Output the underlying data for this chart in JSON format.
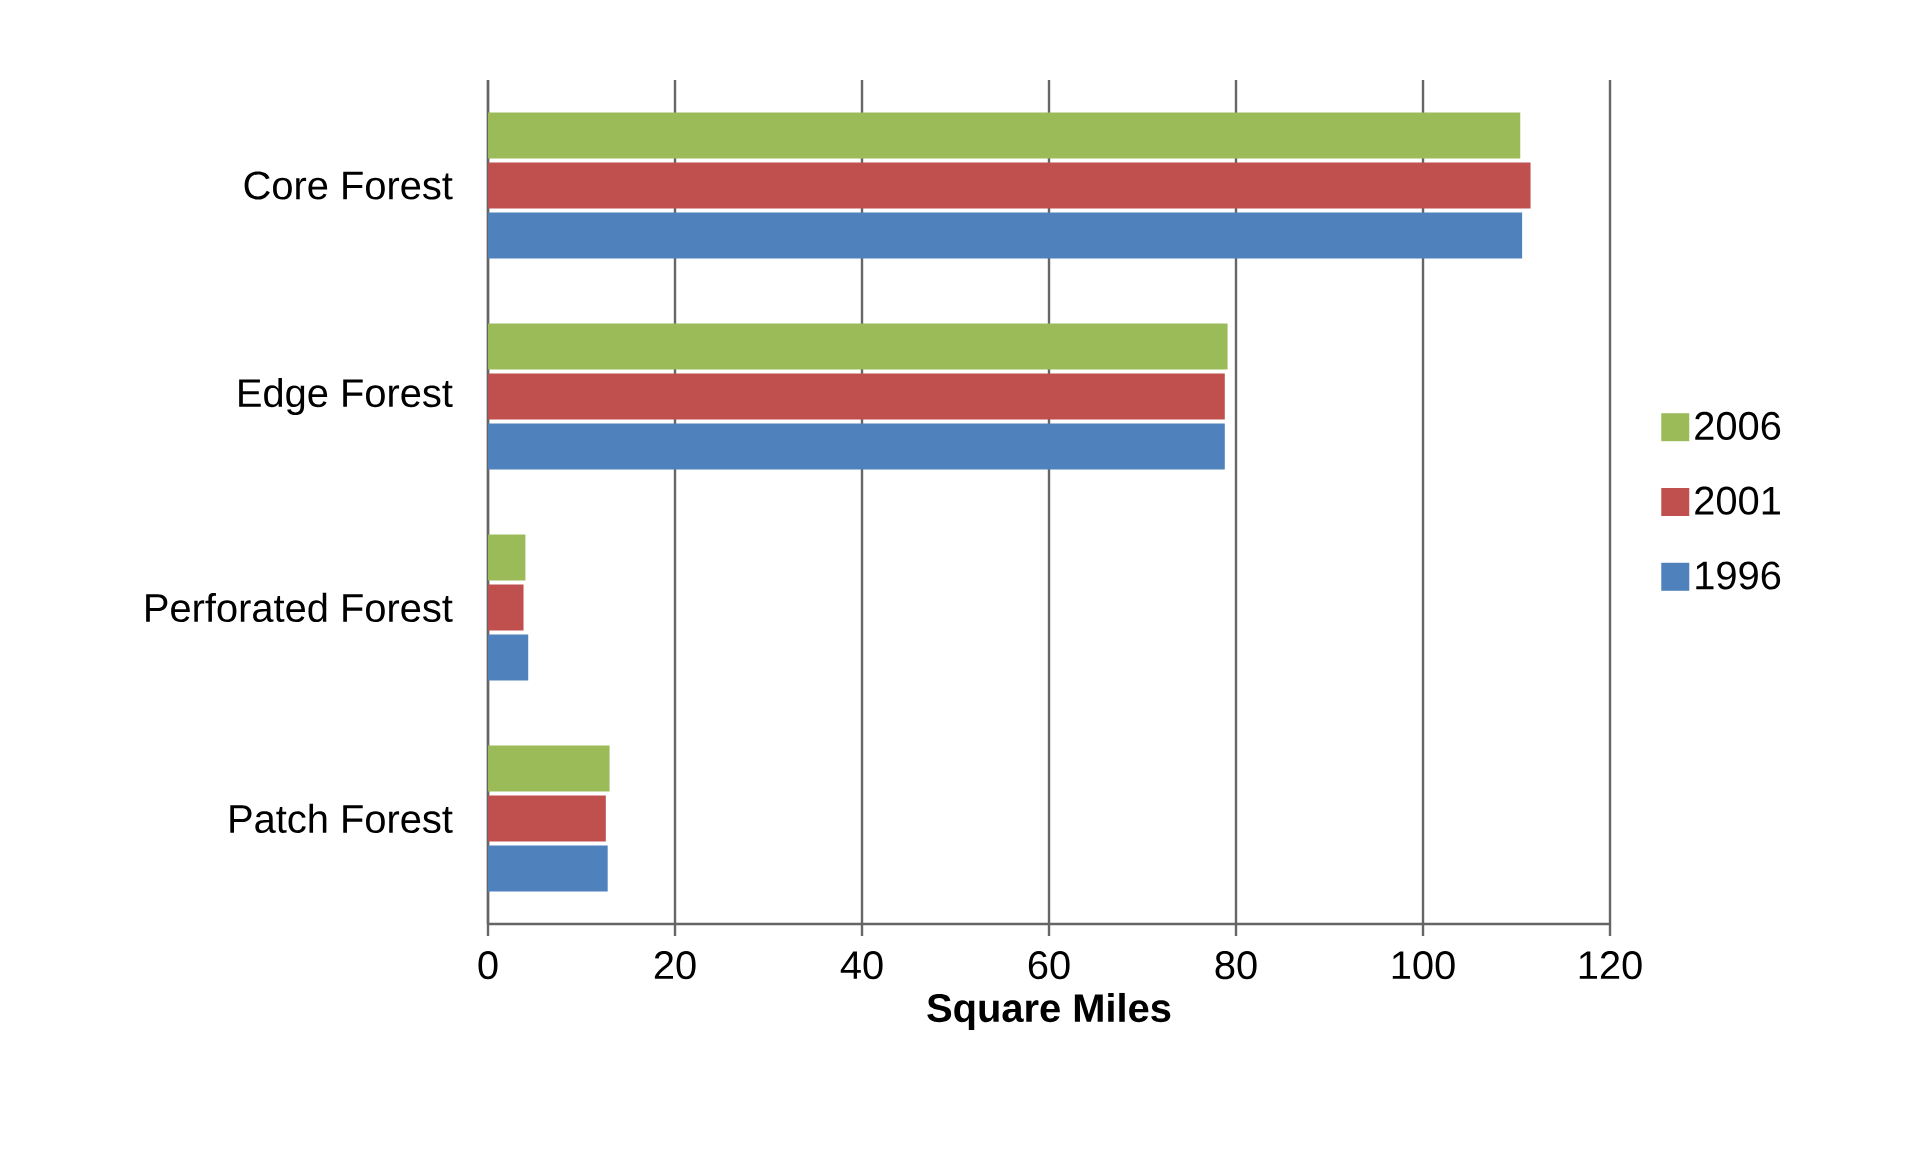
{
  "chart_data": {
    "type": "bar",
    "orientation": "horizontal",
    "xlabel": "Square Miles",
    "categories": [
      "Core Forest",
      "Edge Forest",
      "Perforated Forest",
      "Patch Forest"
    ],
    "series": [
      {
        "name": "1996",
        "color": "#4f81bd",
        "values": [
          110.6,
          78.8,
          4.3,
          12.8
        ]
      },
      {
        "name": "2001",
        "color": "#c0504d",
        "values": [
          111.5,
          78.8,
          3.8,
          12.6
        ]
      },
      {
        "name": "2006",
        "color": "#9bbb59",
        "values": [
          110.4,
          79.1,
          4.0,
          13.0
        ]
      }
    ],
    "xlim": [
      0,
      120
    ],
    "xticks": [
      0,
      20,
      40,
      60,
      80,
      100,
      120
    ],
    "grid": "x",
    "legend": "right"
  }
}
